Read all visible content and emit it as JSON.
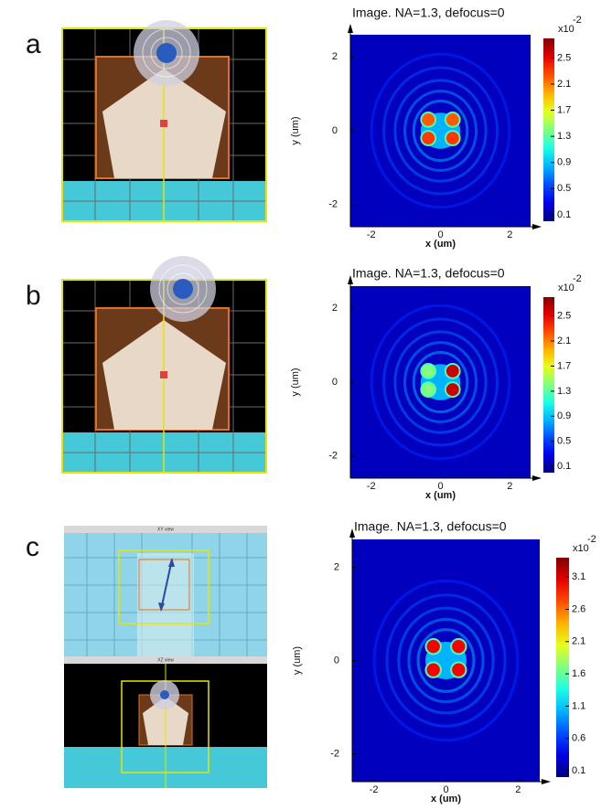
{
  "chart_data": [
    {
      "type": "heatmap",
      "panel": "a",
      "title": "Image. NA=1.3, defocus=0",
      "xlabel": "x (um)",
      "ylabel": "y (um)",
      "xlim": [
        -2.6,
        2.6
      ],
      "ylim": [
        -2.6,
        2.6
      ],
      "xticks": [
        -2,
        0,
        2
      ],
      "yticks": [
        -2,
        0,
        2
      ],
      "clim": [
        0,
        2.8
      ],
      "cticks": [
        0.1,
        0.5,
        0.9,
        1.3,
        1.7,
        2.1,
        2.5
      ],
      "colorbar_label": "x10",
      "colorbar_exponent": "-2",
      "colormap": "jet",
      "peaks": [
        {
          "x": -0.35,
          "y": 0.3,
          "value": 2.2
        },
        {
          "x": 0.35,
          "y": 0.3,
          "value": 2.2
        },
        {
          "x": -0.35,
          "y": -0.2,
          "value": 2.3
        },
        {
          "x": 0.35,
          "y": -0.2,
          "value": 2.3
        }
      ]
    },
    {
      "type": "heatmap",
      "panel": "b",
      "title": "Image. NA=1.3, defocus=0",
      "xlabel": "x (um)",
      "ylabel": "y (um)",
      "xlim": [
        -2.6,
        2.6
      ],
      "ylim": [
        -2.6,
        2.6
      ],
      "xticks": [
        -2,
        0,
        2
      ],
      "yticks": [
        -2,
        0,
        2
      ],
      "clim": [
        0,
        2.8
      ],
      "cticks": [
        0.1,
        0.5,
        0.9,
        1.3,
        1.7,
        2.1,
        2.5
      ],
      "colorbar_label": "x10",
      "colorbar_exponent": "-2",
      "colormap": "jet",
      "peaks": [
        {
          "x": -0.35,
          "y": 0.3,
          "value": 1.4
        },
        {
          "x": 0.35,
          "y": 0.3,
          "value": 2.6
        },
        {
          "x": -0.35,
          "y": -0.2,
          "value": 1.4
        },
        {
          "x": 0.35,
          "y": -0.2,
          "value": 2.6
        }
      ]
    },
    {
      "type": "heatmap",
      "panel": "c",
      "title": "Image. NA=1.3, defocus=0",
      "xlabel": "x (um)",
      "ylabel": "y (um)",
      "xlim": [
        -2.6,
        2.6
      ],
      "ylim": [
        -2.6,
        2.6
      ],
      "xticks": [
        -2,
        0,
        2
      ],
      "yticks": [
        -2,
        0,
        2
      ],
      "clim": [
        0,
        3.4
      ],
      "cticks": [
        0.1,
        0.6,
        1.1,
        1.6,
        2.1,
        2.6,
        3.1
      ],
      "colorbar_label": "x10",
      "colorbar_exponent": "-2",
      "colormap": "jet",
      "schematic_windows": [
        "XY view",
        "XZ view"
      ],
      "peaks": [
        {
          "x": -0.35,
          "y": 0.3,
          "value": 3.0
        },
        {
          "x": 0.35,
          "y": 0.3,
          "value": 3.0
        },
        {
          "x": -0.35,
          "y": -0.2,
          "value": 3.0
        },
        {
          "x": 0.35,
          "y": -0.2,
          "value": 3.0
        }
      ]
    }
  ]
}
